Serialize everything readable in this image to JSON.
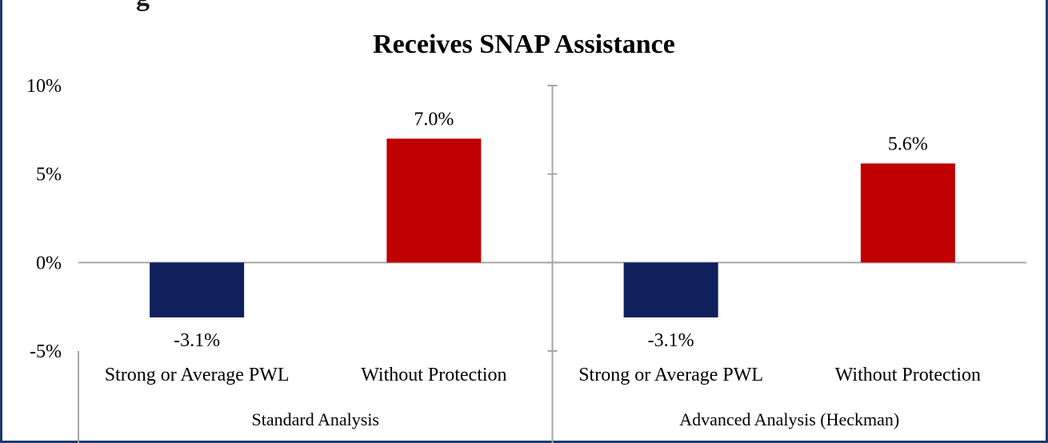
{
  "chart_data": {
    "type": "bar",
    "title": "Receives SNAP Assistance",
    "ylim": [
      -5,
      10
    ],
    "yticks": [
      -5,
      0,
      5,
      10
    ],
    "ytick_labels": [
      "-5%",
      "0%",
      "5%",
      "10%"
    ],
    "grid": false,
    "groups": [
      {
        "name": "Standard Analysis",
        "categories": [
          "Strong or Average PWL",
          "Without Protection"
        ],
        "values": [
          -3.1,
          7.0
        ],
        "labels": [
          "-3.1%",
          "7.0%"
        ]
      },
      {
        "name": "Advanced Analysis (Heckman)",
        "categories": [
          "Strong or Average PWL",
          "Without Protection"
        ],
        "values": [
          -3.1,
          5.6
        ],
        "labels": [
          "-3.1%",
          "5.6%"
        ]
      }
    ],
    "colors": {
      "strong_or_average_pwl": "#0e1f5b",
      "without_protection": "#c00000"
    }
  }
}
